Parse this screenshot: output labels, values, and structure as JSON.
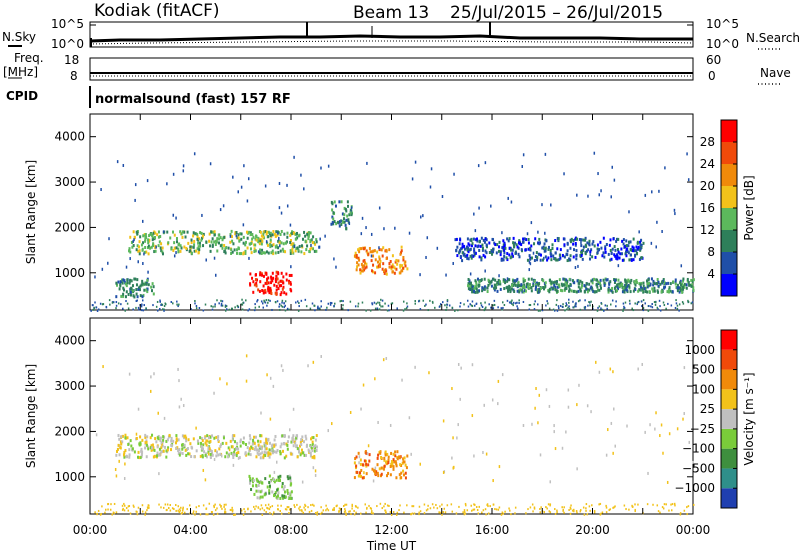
{
  "header": {
    "station": "Kodiak (fitACF)",
    "beam": "Beam 13",
    "date_range": "25/Jul/2015 – 26/Jul/2015",
    "cpid_text": "normalsound (fast) 157 RF"
  },
  "left_labels": {
    "nsky": "N.Sky",
    "freq": "Freq.",
    "freq_unit": "[MHz]",
    "cpid": "CPID"
  },
  "right_labels": {
    "nsearch": "N.Search",
    "nave": "Nave"
  },
  "top_axes": {
    "noise_left_ticks": [
      "10^5",
      "10^0"
    ],
    "noise_right_ticks": [
      "10^5",
      "10^0"
    ],
    "freq_left_ticks": [
      "18",
      "8"
    ],
    "freq_right_ticks": [
      "60",
      "0"
    ]
  },
  "chart_data": [
    {
      "type": "heatmap",
      "name": "power-panel",
      "ylabel": "Slant Range [km]",
      "xlabel": "",
      "ylim": [
        180,
        4500
      ],
      "yticks": [
        "1000",
        "2000",
        "3000",
        "4000"
      ],
      "colorbar": {
        "label": "Power [dB]",
        "ticks": [
          "4",
          "8",
          "12",
          "16",
          "20",
          "24",
          "28"
        ],
        "colors": [
          "#0000ff",
          "#1f4fa8",
          "#2e7f5a",
          "#5cb85c",
          "#f2c21a",
          "#f08a0a",
          "#f04a0a",
          "#ff0000"
        ]
      },
      "regions": [
        {
          "x0": 1.0,
          "x1": 2.5,
          "y0": 500,
          "y1": 900,
          "level": 2
        },
        {
          "x0": 1.5,
          "x1": 9.0,
          "y0": 1450,
          "y1": 1950,
          "level": 3
        },
        {
          "x0": 6.3,
          "x1": 8.0,
          "y0": 550,
          "y1": 1050,
          "level": 7
        },
        {
          "x0": 10.5,
          "x1": 12.6,
          "y0": 1000,
          "y1": 1600,
          "level": 5
        },
        {
          "x0": 9.5,
          "x1": 10.4,
          "y0": 2000,
          "y1": 2600,
          "level": 2
        },
        {
          "x0": 15.0,
          "x1": 24.0,
          "y0": 600,
          "y1": 900,
          "level": 2
        },
        {
          "x0": 14.5,
          "x1": 22.0,
          "y0": 1300,
          "y1": 1800,
          "level": 1
        }
      ]
    },
    {
      "type": "heatmap",
      "name": "velocity-panel",
      "ylabel": "Slant Range [km]",
      "xlabel": "Time UT",
      "ylim": [
        180,
        4500
      ],
      "yticks": [
        "1000",
        "2000",
        "3000",
        "4000"
      ],
      "xticks": [
        "00:00",
        "04:00",
        "08:00",
        "12:00",
        "16:00",
        "20:00",
        "00:00"
      ],
      "colorbar": {
        "label": "Velocity [m s⁻¹]",
        "ticks": [
          "1000",
          "500",
          "100",
          "25",
          "−25",
          "−100",
          "−500",
          "−1000"
        ],
        "colors": [
          "#1f3fb0",
          "#2f8f8a",
          "#3e8f3e",
          "#7acc3a",
          "#c0c0c0",
          "#f2c21a",
          "#f08a0a",
          "#f04a0a",
          "#ff0000"
        ]
      },
      "regions": [
        {
          "x0": 1.0,
          "x1": 9.0,
          "y0": 1450,
          "y1": 1950,
          "level": 4
        },
        {
          "x0": 6.3,
          "x1": 8.0,
          "y0": 550,
          "y1": 1050,
          "level": 3
        },
        {
          "x0": 10.5,
          "x1": 12.6,
          "y0": 1000,
          "y1": 1600,
          "level": 6
        }
      ]
    }
  ]
}
